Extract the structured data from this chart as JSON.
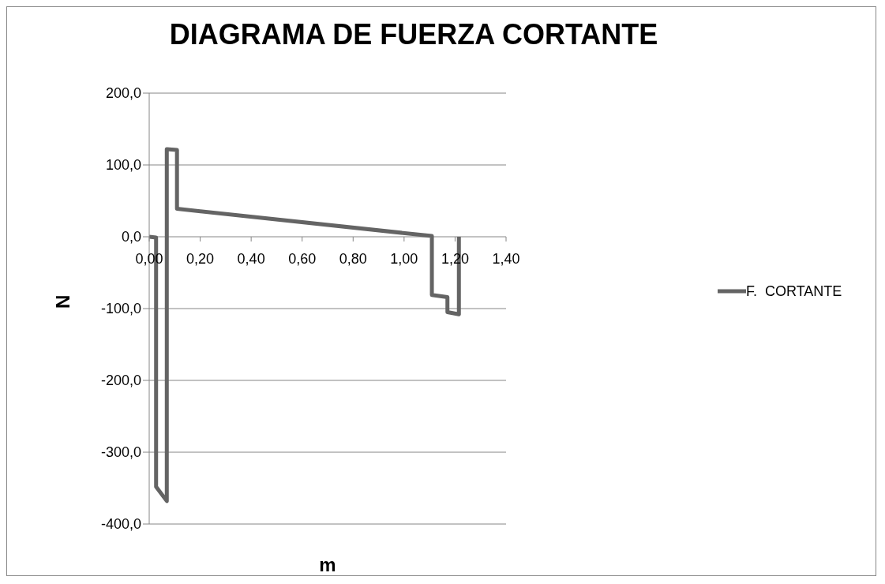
{
  "chart_data": {
    "type": "line",
    "title": "DIAGRAMA DE FUERZA CORTANTE",
    "xlabel": "m",
    "ylabel": "N",
    "x": [
      0,
      0.027,
      0.027,
      0.069,
      0.069,
      0.109,
      0.109,
      1.109,
      1.109,
      1.17,
      1.17,
      1.215,
      1.215
    ],
    "series": [
      {
        "name": "F.  CORTANTE",
        "color": "#646464",
        "values": [
          0,
          -1,
          -348,
          -368,
          122,
          121,
          39,
          1,
          -81,
          -84,
          -105,
          -108,
          0
        ]
      }
    ],
    "xlim": [
      0,
      1.4
    ],
    "xticks": [
      {
        "value": 0,
        "label": "0,00"
      },
      {
        "value": 0.2,
        "label": "0,20"
      },
      {
        "value": 0.4,
        "label": "0,40"
      },
      {
        "value": 0.6,
        "label": "0,60"
      },
      {
        "value": 0.8,
        "label": "0,80"
      },
      {
        "value": 1,
        "label": "1,00"
      },
      {
        "value": 1.2,
        "label": "1,20"
      },
      {
        "value": 1.4,
        "label": "1,40"
      }
    ],
    "ylim": [
      -400,
      200
    ],
    "yticks": [
      {
        "value": -400,
        "label": "-400,0"
      },
      {
        "value": -300,
        "label": "-300,0"
      },
      {
        "value": -200,
        "label": "-200,0"
      },
      {
        "value": -100,
        "label": "-100,0"
      },
      {
        "value": 0,
        "label": "0,0"
      },
      {
        "value": 100,
        "label": "100,0"
      },
      {
        "value": 200,
        "label": "200,0"
      }
    ],
    "grid": "y",
    "legend": "right",
    "marker": "none",
    "line_style": "solid"
  }
}
